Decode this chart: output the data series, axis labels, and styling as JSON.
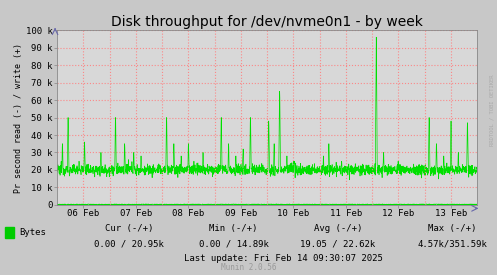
{
  "title": "Disk throughput for /dev/nvme0n1 - by week",
  "ylabel": "Pr second read (-) / write (+)",
  "background_color": "#c8c8c8",
  "plot_bg_color": "#d8d8d8",
  "line_color": "#00e000",
  "grid_color_v": "#ff8080",
  "grid_color_h": "#ff8080",
  "axis_color": "#000000",
  "ylim": [
    0,
    100000
  ],
  "yticks": [
    0,
    10000,
    20000,
    30000,
    40000,
    50000,
    60000,
    70000,
    80000,
    90000,
    100000
  ],
  "ytick_labels": [
    "0",
    "10 k",
    "20 k",
    "30 k",
    "40 k",
    "50 k",
    "60 k",
    "70 k",
    "80 k",
    "90 k",
    "100 k"
  ],
  "x_date_labels": [
    "06 Feb",
    "07 Feb",
    "08 Feb",
    "09 Feb",
    "10 Feb",
    "11 Feb",
    "12 Feb",
    "13 Feb"
  ],
  "legend_color": "#00cc00",
  "legend_label": "Bytes",
  "cur_label": "Cur (-/+)",
  "min_label": "Min (-/+)",
  "avg_label": "Avg (-/+)",
  "max_label": "Max (-/+)",
  "cur_val": "0.00 / 20.95k",
  "min_val": "0.00 / 14.89k",
  "avg_val": "19.05 / 22.62k",
  "max_val": "4.57k/351.59k",
  "last_update": "Last update: Fri Feb 14 09:30:07 2025",
  "munin_label": "Munin 2.0.56",
  "rrdtool_label": "RRDTOOL / TOBI OETIKER",
  "title_fontsize": 10,
  "tick_fontsize": 6.5,
  "label_fontsize": 6.0,
  "info_fontsize": 6.5
}
